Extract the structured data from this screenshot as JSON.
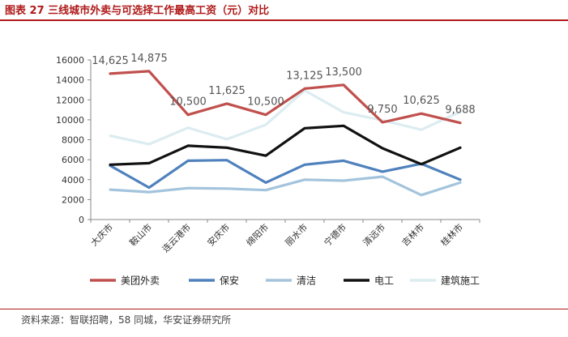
{
  "figure": {
    "title": "图表 27 三线城市外卖与可选择工作最高工资（元）对比",
    "source": "资料来源：智联招聘，58 同城，华安证券研究所"
  },
  "chart_data": {
    "type": "line",
    "title": "图表 27 三线城市外卖与可选择工作最高工资（元）对比",
    "categories": [
      "大庆市",
      "鞍山市",
      "连云港市",
      "安庆市",
      "绵阳市",
      "丽水市",
      "宁德市",
      "清远市",
      "吉林市",
      "桂林市"
    ],
    "ylim": [
      0,
      16000
    ],
    "yticks": [
      0,
      2000,
      4000,
      6000,
      8000,
      10000,
      12000,
      14000,
      16000
    ],
    "ytick_labels": [
      "0",
      "2000",
      "4000",
      "6000",
      "8000",
      "10000",
      "12000",
      "14000",
      "16000"
    ],
    "grid": false,
    "legend_position": "bottom",
    "series": [
      {
        "name": "美团外卖",
        "color": "#c0504d",
        "values": [
          14625,
          14875,
          10500,
          11625,
          10500,
          13125,
          13500,
          9750,
          10625,
          9688
        ],
        "labels": [
          "14,625",
          "14,875",
          "10,500",
          "11,625",
          "10,500",
          "13,125",
          "13,500",
          "9,750",
          "10,625",
          "9,688"
        ]
      },
      {
        "name": "保安",
        "color": "#4f81bd",
        "values": [
          5400,
          3200,
          5900,
          5950,
          3700,
          5500,
          5900,
          4800,
          5600,
          4000
        ]
      },
      {
        "name": "清洁",
        "color": "#a3c4dc",
        "values": [
          3000,
          2750,
          3150,
          3100,
          2950,
          4000,
          3900,
          4300,
          2450,
          3700
        ]
      },
      {
        "name": "电工",
        "color": "#111111",
        "values": [
          5500,
          5650,
          7400,
          7200,
          6400,
          9150,
          9400,
          7150,
          5550,
          7200
        ]
      },
      {
        "name": "建筑施工",
        "color": "#dcecf1",
        "values": [
          8400,
          7550,
          9200,
          8050,
          9500,
          12950,
          10750,
          9950,
          9000,
          10800
        ]
      }
    ]
  }
}
